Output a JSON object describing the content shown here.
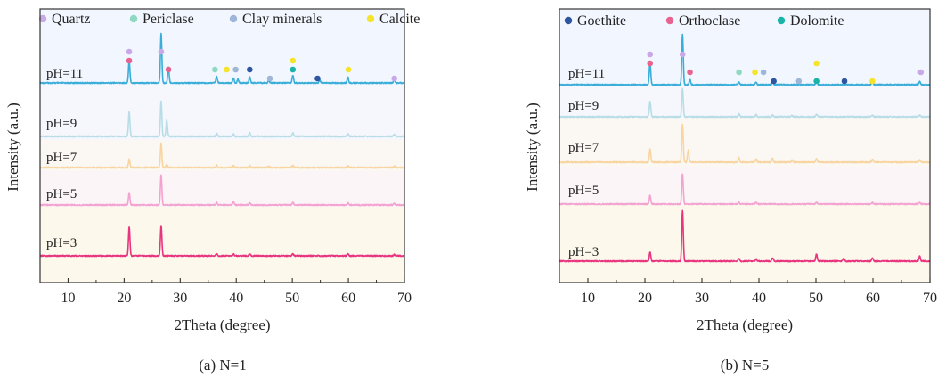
{
  "chart_data": [
    {
      "type": "line",
      "caption": "(a) N=1",
      "xlabel": "2Theta (degree)",
      "ylabel": "Intensity (a.u.)",
      "xlim": [
        5,
        70
      ],
      "xticks": [
        10,
        20,
        30,
        40,
        50,
        60,
        70
      ],
      "legend": [
        {
          "name": "Quartz",
          "color": "#c9a8e8"
        },
        {
          "name": "Periclase",
          "color": "#8fd9c2"
        },
        {
          "name": "Clay minerals",
          "color": "#9fb6d8"
        },
        {
          "name": "Calcite",
          "color": "#f5e42a"
        }
      ],
      "bands": [
        "#f2f6ff",
        "#f6f7fc",
        "#fbf7f3",
        "#fcf5f8",
        "#fcf9ec"
      ],
      "series": [
        {
          "label": "pH=11",
          "color": "#3aaed8",
          "peaks": [
            [
              20.9,
              0.45
            ],
            [
              26.6,
              1.0
            ],
            [
              27.9,
              0.32
            ],
            [
              36.5,
              0.14
            ],
            [
              39.5,
              0.1
            ],
            [
              40.3,
              0.08
            ],
            [
              42.4,
              0.12
            ],
            [
              45.8,
              0.05
            ],
            [
              50.1,
              0.15
            ],
            [
              54.9,
              0.05
            ],
            [
              59.9,
              0.12
            ],
            [
              68.2,
              0.06
            ]
          ]
        },
        {
          "label": "pH=9",
          "color": "#b8dde6",
          "peaks": [
            [
              20.9,
              0.7
            ],
            [
              26.6,
              1.0
            ],
            [
              27.6,
              0.45
            ],
            [
              36.5,
              0.08
            ],
            [
              39.5,
              0.06
            ],
            [
              42.4,
              0.1
            ],
            [
              50.1,
              0.1
            ],
            [
              59.9,
              0.08
            ],
            [
              68.2,
              0.05
            ]
          ]
        },
        {
          "label": "pH=7",
          "color": "#f8d5a0",
          "peaks": [
            [
              20.9,
              0.35
            ],
            [
              26.6,
              1.0
            ],
            [
              27.6,
              0.12
            ],
            [
              36.5,
              0.1
            ],
            [
              39.5,
              0.07
            ],
            [
              42.4,
              0.08
            ],
            [
              45.8,
              0.05
            ],
            [
              50.1,
              0.1
            ],
            [
              59.9,
              0.08
            ],
            [
              68.2,
              0.05
            ]
          ]
        },
        {
          "label": "pH=5",
          "color": "#f3a3cf",
          "peaks": [
            [
              20.9,
              0.42
            ],
            [
              26.6,
              1.0
            ],
            [
              36.5,
              0.08
            ],
            [
              39.5,
              0.1
            ],
            [
              42.4,
              0.07
            ],
            [
              50.1,
              0.09
            ],
            [
              59.9,
              0.07
            ],
            [
              68.2,
              0.05
            ]
          ]
        },
        {
          "label": "pH=3",
          "color": "#e9347f",
          "peaks": [
            [
              20.9,
              0.9
            ],
            [
              26.6,
              0.95
            ],
            [
              36.5,
              0.06
            ],
            [
              39.5,
              0.05
            ],
            [
              42.4,
              0.05
            ],
            [
              50.1,
              0.06
            ],
            [
              59.9,
              0.06
            ],
            [
              68.2,
              0.04
            ]
          ]
        }
      ],
      "markers": [
        {
          "x": 20.9,
          "level": 2,
          "color": "#c9a8e8"
        },
        {
          "x": 20.9,
          "level": 1,
          "color": "#e86490"
        },
        {
          "x": 26.6,
          "level": 2,
          "color": "#c9a8e8"
        },
        {
          "x": 27.9,
          "level": 0,
          "color": "#e86490"
        },
        {
          "x": 36.2,
          "level": 0,
          "color": "#8fd9c2"
        },
        {
          "x": 38.3,
          "level": 0,
          "color": "#f5e42a"
        },
        {
          "x": 39.9,
          "level": 0,
          "color": "#9fb6d8"
        },
        {
          "x": 42.4,
          "level": 0,
          "color": "#2d55a0"
        },
        {
          "x": 46.0,
          "level": -1,
          "color": "#9fb6d8"
        },
        {
          "x": 50.1,
          "level": 1,
          "color": "#f5e42a"
        },
        {
          "x": 50.1,
          "level": 0,
          "color": "#19b3a8"
        },
        {
          "x": 54.5,
          "level": -1,
          "color": "#2d55a0"
        },
        {
          "x": 60.0,
          "level": 0,
          "color": "#f5e42a"
        },
        {
          "x": 68.2,
          "level": -1,
          "color": "#c9a8e8"
        }
      ]
    },
    {
      "type": "line",
      "caption": "(b) N=5",
      "xlabel": "2Theta (degree)",
      "ylabel": "Intensity (a.u.)",
      "xlim": [
        5,
        70
      ],
      "xticks": [
        10,
        20,
        30,
        40,
        50,
        60,
        70
      ],
      "legend": [
        {
          "name": "Goethite",
          "color": "#2d55a0"
        },
        {
          "name": "Orthoclase",
          "color": "#e86490"
        },
        {
          "name": "Dolomite",
          "color": "#19b3a8"
        }
      ],
      "bands": [
        "#f2f6ff",
        "#f6f7fc",
        "#fbf7f3",
        "#fcf5f8",
        "#fcf9ec"
      ],
      "series": [
        {
          "label": "pH=11",
          "color": "#3aaed8",
          "peaks": [
            [
              20.9,
              0.45
            ],
            [
              26.6,
              1.0
            ],
            [
              27.9,
              0.1
            ],
            [
              36.5,
              0.06
            ],
            [
              39.5,
              0.05
            ],
            [
              42.4,
              0.05
            ],
            [
              50.1,
              0.08
            ],
            [
              59.9,
              0.06
            ],
            [
              68.2,
              0.06
            ]
          ]
        },
        {
          "label": "pH=9",
          "color": "#b8dde6",
          "peaks": [
            [
              20.9,
              0.55
            ],
            [
              26.6,
              1.0
            ],
            [
              36.5,
              0.1
            ],
            [
              39.5,
              0.07
            ],
            [
              42.4,
              0.06
            ],
            [
              45.8,
              0.05
            ],
            [
              50.1,
              0.08
            ],
            [
              59.9,
              0.06
            ],
            [
              68.2,
              0.05
            ]
          ]
        },
        {
          "label": "pH=7",
          "color": "#f8d5a0",
          "peaks": [
            [
              20.9,
              0.35
            ],
            [
              26.6,
              1.0
            ],
            [
              27.6,
              0.32
            ],
            [
              36.5,
              0.12
            ],
            [
              39.5,
              0.08
            ],
            [
              42.4,
              0.1
            ],
            [
              45.8,
              0.06
            ],
            [
              50.1,
              0.1
            ],
            [
              59.9,
              0.08
            ],
            [
              68.2,
              0.06
            ]
          ]
        },
        {
          "label": "pH=5",
          "color": "#f3a3cf",
          "peaks": [
            [
              20.9,
              0.3
            ],
            [
              26.6,
              1.0
            ],
            [
              36.5,
              0.05
            ],
            [
              39.5,
              0.05
            ],
            [
              50.1,
              0.06
            ],
            [
              59.9,
              0.05
            ],
            [
              68.2,
              0.05
            ]
          ]
        },
        {
          "label": "pH=3",
          "color": "#e9347f",
          "peaks": [
            [
              20.9,
              0.18
            ],
            [
              26.6,
              1.0
            ],
            [
              36.5,
              0.05
            ],
            [
              39.5,
              0.04
            ],
            [
              42.4,
              0.06
            ],
            [
              50.1,
              0.14
            ],
            [
              54.9,
              0.06
            ],
            [
              59.9,
              0.06
            ],
            [
              68.2,
              0.1
            ]
          ]
        }
      ],
      "markers": [
        {
          "x": 20.9,
          "level": 2,
          "color": "#c9a8e8"
        },
        {
          "x": 20.9,
          "level": 1,
          "color": "#e86490"
        },
        {
          "x": 26.6,
          "level": 2,
          "color": "#c9a8e8"
        },
        {
          "x": 27.9,
          "level": 0,
          "color": "#e86490"
        },
        {
          "x": 36.5,
          "level": 0,
          "color": "#8fd9c2"
        },
        {
          "x": 39.3,
          "level": 0,
          "color": "#f5e42a"
        },
        {
          "x": 40.8,
          "level": 0,
          "color": "#9fb6d8"
        },
        {
          "x": 42.6,
          "level": -1,
          "color": "#2d55a0"
        },
        {
          "x": 47.0,
          "level": -1,
          "color": "#9fb6d8"
        },
        {
          "x": 50.1,
          "level": 1,
          "color": "#f5e42a"
        },
        {
          "x": 50.1,
          "level": -1,
          "color": "#19b3a8"
        },
        {
          "x": 55.0,
          "level": -1,
          "color": "#2d55a0"
        },
        {
          "x": 59.9,
          "level": -1,
          "color": "#f5e42a"
        },
        {
          "x": 68.4,
          "level": 0,
          "color": "#c9a8e8"
        }
      ]
    }
  ]
}
